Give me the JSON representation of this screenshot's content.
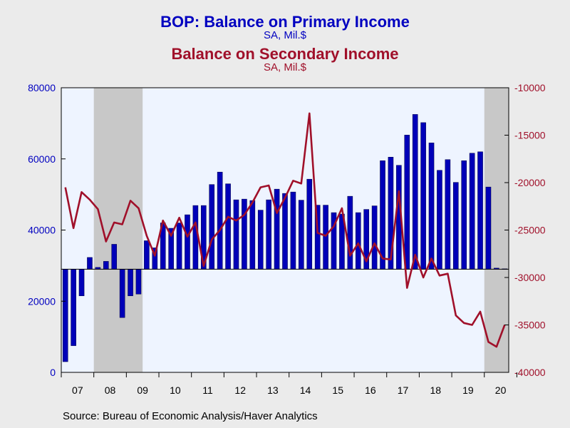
{
  "titles": {
    "primary_title": "BOP: Balance on Primary Income",
    "primary_unit": "SA, Mil.$",
    "secondary_title": "Balance on Secondary Income",
    "secondary_unit": "SA, Mil.$"
  },
  "source": "Source:  Bureau of Economic Analysis/Haver Analytics",
  "colors": {
    "primary": "#0000c0",
    "secondary": "#a0102a",
    "bar_fill": "#0000b8",
    "plot_bg": "#eef4ff",
    "recession": "#c8c8c8",
    "background": "#ebebeb"
  },
  "chart_data": {
    "type": "bar+line",
    "x_tick_labels": [
      "07",
      "08",
      "09",
      "10",
      "11",
      "12",
      "13",
      "14",
      "15",
      "16",
      "17",
      "18",
      "19",
      "20"
    ],
    "left_axis": {
      "ylim": [
        0,
        80000
      ],
      "ticks": [
        0,
        20000,
        40000,
        60000,
        80000
      ],
      "tick_labels": [
        "0",
        "20000",
        "40000",
        "60000",
        "80000"
      ]
    },
    "right_axis": {
      "ylim": [
        -40000,
        -10000
      ],
      "ticks": [
        -40000,
        -35000,
        -30000,
        -25000,
        -20000,
        -15000,
        -10000
      ],
      "tick_labels": [
        "-40000",
        "-35000",
        "-30000",
        "-25000",
        "-20000",
        "-15000",
        "-10000"
      ]
    },
    "bar_baseline": 29000,
    "quarters": [
      "2007Q1",
      "2007Q2",
      "2007Q3",
      "2007Q4",
      "2008Q1",
      "2008Q2",
      "2008Q3",
      "2008Q4",
      "2009Q1",
      "2009Q2",
      "2009Q3",
      "2009Q4",
      "2010Q1",
      "2010Q2",
      "2010Q3",
      "2010Q4",
      "2011Q1",
      "2011Q2",
      "2011Q3",
      "2011Q4",
      "2012Q1",
      "2012Q2",
      "2012Q3",
      "2012Q4",
      "2013Q1",
      "2013Q2",
      "2013Q3",
      "2013Q4",
      "2014Q1",
      "2014Q2",
      "2014Q3",
      "2014Q4",
      "2015Q1",
      "2015Q2",
      "2015Q3",
      "2015Q4",
      "2016Q1",
      "2016Q2",
      "2016Q3",
      "2016Q4",
      "2017Q1",
      "2017Q2",
      "2017Q3",
      "2017Q4",
      "2018Q1",
      "2018Q2",
      "2018Q3",
      "2018Q4",
      "2019Q1",
      "2019Q2",
      "2019Q3",
      "2019Q4",
      "2020Q1",
      "2020Q2",
      "2020Q3"
    ],
    "recessions": [
      {
        "start": 4,
        "end": 10
      },
      {
        "start": 52,
        "end": 55
      }
    ],
    "series": [
      {
        "name": "BOP: Balance on Primary Income",
        "axis": "left",
        "style": "bar",
        "values": [
          3000,
          7500,
          21500,
          32300,
          29500,
          31200,
          36000,
          15400,
          21500,
          22000,
          37000,
          35000,
          42000,
          40500,
          42000,
          44300,
          46900,
          46900,
          52800,
          56300,
          53000,
          48500,
          48700,
          48300,
          45600,
          48500,
          51500,
          50300,
          50700,
          48400,
          54300,
          47000,
          47000,
          44900,
          44500,
          49500,
          44900,
          45800,
          46800,
          59500,
          60500,
          58200,
          66700,
          72500,
          70200,
          64500,
          56800,
          59800,
          53400,
          59500,
          61600,
          62000,
          52100,
          29300,
          29100
        ]
      },
      {
        "name": "Balance on Secondary Income",
        "axis": "right",
        "style": "line",
        "values": [
          -20500,
          -24800,
          -21000,
          -21800,
          -22800,
          -26200,
          -24200,
          -24400,
          -21900,
          -22700,
          -25600,
          -27700,
          -24000,
          -25600,
          -23700,
          -25700,
          -24200,
          -28800,
          -26000,
          -25000,
          -23600,
          -24000,
          -23400,
          -22100,
          -20500,
          -20300,
          -23200,
          -21600,
          -19800,
          -20100,
          -12700,
          -25300,
          -25600,
          -24600,
          -22700,
          -27700,
          -26400,
          -28300,
          -26400,
          -28000,
          -28100,
          -20900,
          -31100,
          -27600,
          -30000,
          -28000,
          -29800,
          -29600,
          -34000,
          -34800,
          -35000,
          -33600,
          -36800,
          -37300,
          -35000
        ]
      }
    ]
  }
}
